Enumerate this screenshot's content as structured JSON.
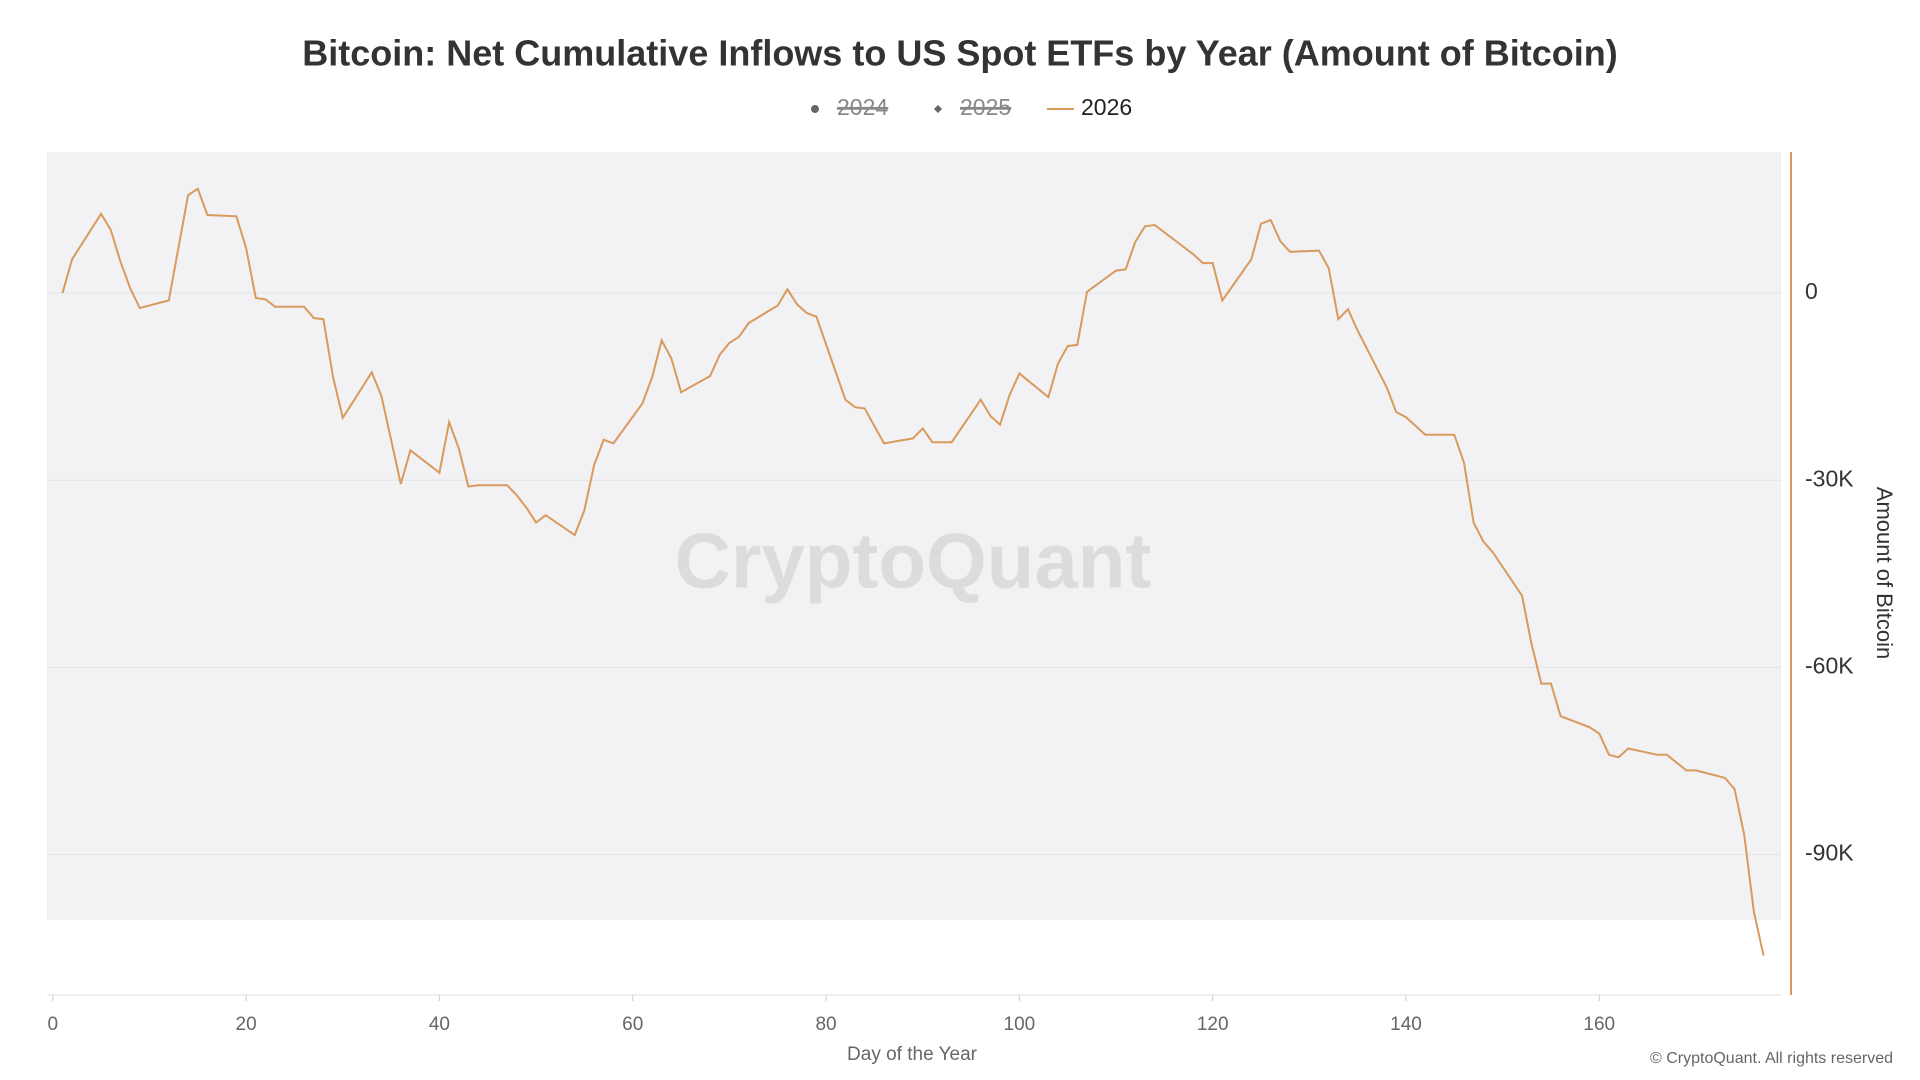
{
  "chart_data": {
    "type": "line",
    "title": "Bitcoin: Net Cumulative Inflows to US Spot ETFs by Year (Amount of Bitcoin)",
    "xlabel": "Day of the Year",
    "ylabel": "Amount of Bitcoin",
    "watermark": "CryptoQuant",
    "copyright": "© CryptoQuant. All rights reserved",
    "xlim": [
      -0.6,
      178.8
    ],
    "xticks": [
      0,
      20,
      40,
      60,
      80,
      100,
      120,
      140,
      160
    ],
    "ylim": [
      -112500,
      22600
    ],
    "yticks": [
      0,
      {
        "value": -30000,
        "label": "-30K"
      },
      {
        "value": -60000,
        "label": "-60K"
      },
      {
        "value": -90000,
        "label": "-90K"
      }
    ],
    "grid": true,
    "legend": "top",
    "series": [
      {
        "name": "2024",
        "color": "#666666",
        "marker": "circle",
        "hidden": true
      },
      {
        "name": "2025",
        "color": "#666666",
        "marker": "diamond",
        "hidden": true
      },
      {
        "name": "2026",
        "color": "#d99a5e",
        "x": [
          1,
          2,
          5,
          6,
          7,
          8,
          9,
          12,
          14,
          15,
          16,
          19,
          20,
          21,
          22,
          23,
          26,
          27,
          28,
          29,
          30,
          33,
          34,
          35,
          36,
          37,
          40,
          41,
          42,
          43,
          44,
          47,
          48,
          49,
          50,
          51,
          54,
          55,
          56,
          57,
          58,
          61,
          62,
          63,
          64,
          65,
          68,
          69,
          70,
          71,
          72,
          75,
          76,
          77,
          78,
          79,
          82,
          83,
          84,
          86,
          89,
          90,
          91,
          93,
          96,
          97,
          98,
          99,
          100,
          103,
          104,
          105,
          106,
          107,
          110,
          111,
          112,
          113,
          114,
          118,
          119,
          120,
          121,
          124,
          125,
          126,
          127,
          128,
          131,
          132,
          133,
          134,
          135,
          138,
          139,
          140,
          142,
          145,
          146,
          147,
          148,
          149,
          152,
          153,
          154,
          155,
          156,
          159,
          160,
          161,
          162,
          163,
          166,
          167,
          169,
          170,
          173,
          174,
          175,
          176,
          177
        ],
        "values": [
          0,
          5400,
          12700,
          10100,
          5000,
          800,
          -2400,
          -1200,
          15700,
          16700,
          12500,
          12300,
          7200,
          -800,
          -1000,
          -2200,
          -2200,
          -4000,
          -4200,
          -13500,
          -20000,
          -12700,
          -16500,
          -23500,
          -30600,
          -25200,
          -28800,
          -20700,
          -24900,
          -31000,
          -30800,
          -30800,
          -32400,
          -34400,
          -36800,
          -35600,
          -38800,
          -34800,
          -27600,
          -23500,
          -24100,
          -17700,
          -13500,
          -7600,
          -10500,
          -15900,
          -13300,
          -9900,
          -8000,
          -7000,
          -4800,
          -2000,
          600,
          -1800,
          -3200,
          -3800,
          -17100,
          -18300,
          -18500,
          -24100,
          -23300,
          -21700,
          -23900,
          -23900,
          -17100,
          -19700,
          -21100,
          -16300,
          -12900,
          -16700,
          -11300,
          -8500,
          -8300,
          200,
          3600,
          3800,
          8200,
          10700,
          10900,
          6200,
          4800,
          4800,
          -1200,
          5400,
          11100,
          11700,
          8300,
          6600,
          6800,
          4000,
          -4200,
          -2600,
          -6000,
          -15100,
          -19100,
          -19900,
          -22700,
          -22700,
          -27200,
          -36800,
          -39800,
          -41600,
          -48500,
          -56300,
          -62600,
          -62600,
          -67800,
          -69600,
          -70600,
          -74000,
          -74400,
          -73000,
          -74000,
          -74000,
          -76500,
          -76500,
          -77700,
          -79500,
          -86900,
          -99200,
          -106200
        ]
      }
    ]
  }
}
